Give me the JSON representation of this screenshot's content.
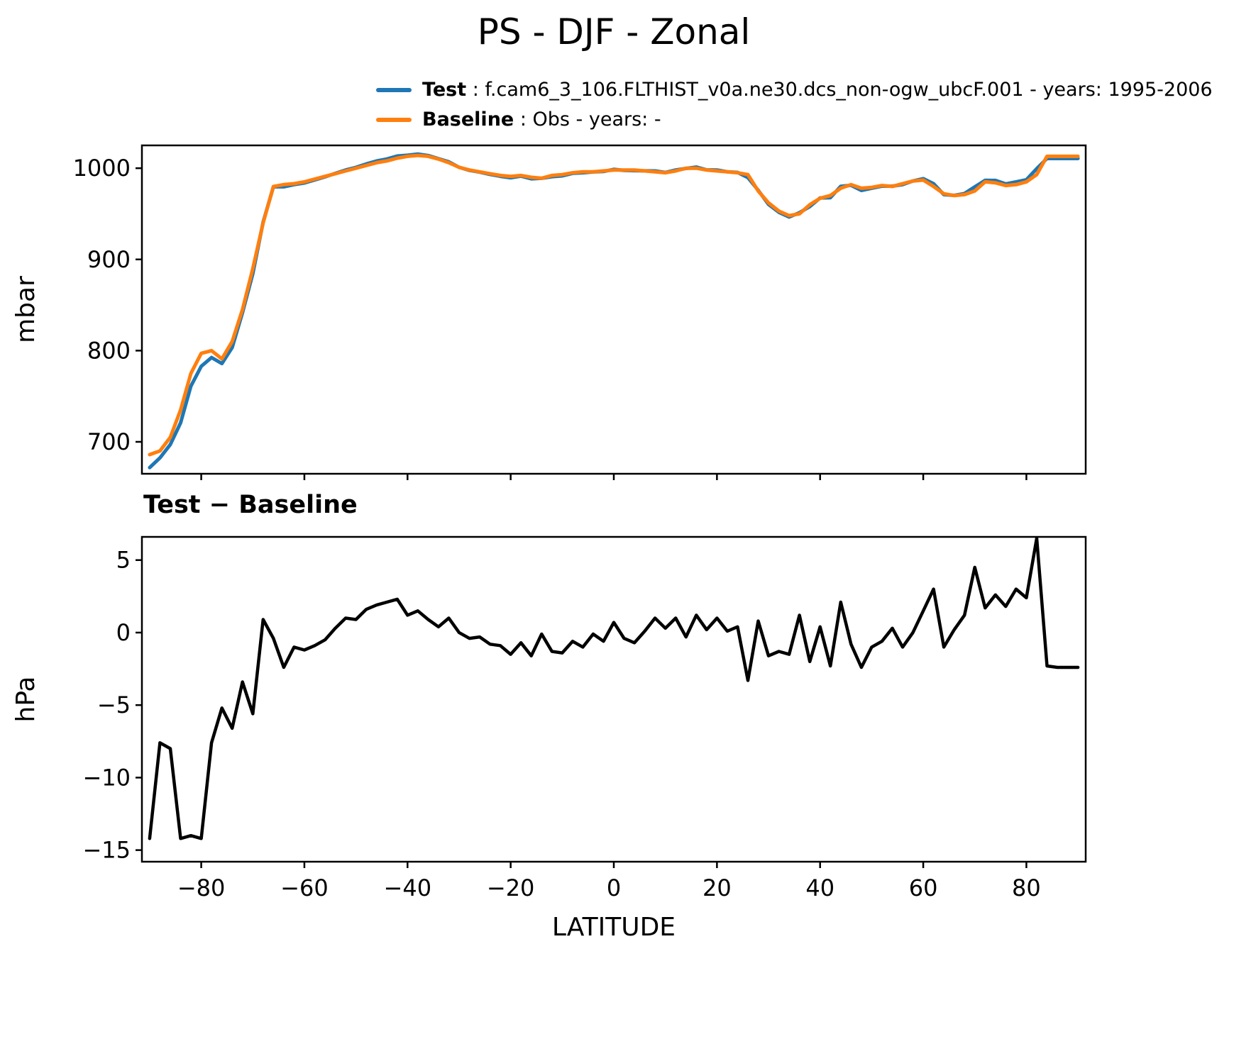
{
  "title": "PS - DJF - Zonal",
  "subplot2_title": "Test − Baseline",
  "legend": [
    {
      "label": "Test",
      "desc": " : f.cam6_3_106.FLTHIST_v0a.ne30.dcs_non-ogw_ubcF.001 - years: 1995-2006",
      "color": "#1f77b4"
    },
    {
      "label": "Baseline",
      "desc": " : Obs - years: -",
      "color": "#ff7f0e"
    }
  ],
  "colors": {
    "test": "#1f77b4",
    "baseline": "#ff7f0e",
    "diff": "#000000"
  },
  "chart_data": [
    {
      "type": "line",
      "title": "",
      "xlabel": "",
      "ylabel": "mbar",
      "xlim": [
        -91.5,
        91.5
      ],
      "ylim": [
        665,
        1025
      ],
      "xticks": [
        -80,
        -60,
        -40,
        -20,
        0,
        20,
        40,
        60,
        80
      ],
      "yticks": [
        700,
        800,
        900,
        1000
      ],
      "show_xtick_labels": false,
      "grid": false,
      "legend_position": "above-figure",
      "line_width": 5,
      "x": [
        -90,
        -88,
        -86,
        -84,
        -82,
        -80,
        -78,
        -76,
        -74,
        -72,
        -70,
        -68,
        -66,
        -64,
        -62,
        -60,
        -58,
        -56,
        -54,
        -52,
        -50,
        -48,
        -46,
        -44,
        -42,
        -40,
        -38,
        -36,
        -34,
        -32,
        -30,
        -28,
        -26,
        -24,
        -22,
        -20,
        -18,
        -16,
        -14,
        -12,
        -10,
        -8,
        -6,
        -4,
        -2,
        0,
        2,
        4,
        6,
        8,
        10,
        12,
        14,
        16,
        18,
        20,
        22,
        24,
        26,
        28,
        30,
        32,
        34,
        36,
        38,
        40,
        42,
        44,
        46,
        48,
        50,
        52,
        54,
        56,
        58,
        60,
        62,
        64,
        66,
        68,
        70,
        72,
        74,
        76,
        78,
        80,
        82,
        84,
        86,
        88,
        90
      ],
      "series": [
        {
          "name": "Test",
          "color": "#1f77b4",
          "values": [
            671.8,
            682.4,
            697.0,
            720.8,
            761.0,
            782.8,
            792.4,
            785.8,
            803.4,
            841.6,
            884.4,
            940.9,
            979.6,
            979.6,
            982.0,
            983.8,
            987.1,
            990.5,
            994.3,
            998.0,
            1000.9,
            1004.6,
            1007.9,
            1010.1,
            1013.3,
            1014.2,
            1015.5,
            1013.9,
            1010.4,
            1007.0,
            1001.0,
            997.6,
            995.7,
            993.2,
            991.1,
            989.5,
            991.3,
            988.4,
            988.9,
            990.7,
            991.6,
            994.4,
            995.0,
            995.9,
            996.4,
            998.7,
            997.6,
            997.3,
            997.1,
            997.0,
            995.3,
            998.0,
            999.7,
            1001.2,
            998.2,
            998.0,
            996.1,
            995.4,
            989.7,
            975.8,
            960.4,
            951.7,
            946.5,
            951.2,
            958.0,
            967.4,
            967.7,
            980.1,
            981.2,
            975.6,
            978.0,
            980.4,
            980.3,
            982.0,
            986.0,
            988.5,
            983.0,
            971.0,
            970.2,
            972.2,
            979.5,
            986.7,
            986.6,
            982.8,
            985.0,
            987.4,
            999.5,
            1010.7,
            1010.6,
            1010.6,
            1010.6
          ]
        },
        {
          "name": "Baseline",
          "color": "#ff7f0e",
          "values": [
            686,
            690,
            705,
            735,
            775,
            797,
            800,
            791,
            810,
            845,
            890,
            940,
            980,
            982,
            983,
            985,
            988,
            991,
            994,
            997,
            1000,
            1003,
            1006,
            1008,
            1011,
            1013,
            1014,
            1013,
            1010,
            1006,
            1001,
            998,
            996,
            994,
            992,
            991,
            992,
            990,
            989,
            992,
            993,
            995,
            996,
            996,
            997,
            998,
            998,
            998,
            997,
            996,
            995,
            997,
            1000,
            1000,
            998,
            997,
            996,
            995,
            993,
            975,
            962,
            953,
            948,
            950,
            960,
            967,
            970,
            978,
            982,
            978,
            979,
            981,
            980,
            983,
            986,
            987,
            980,
            972,
            970,
            971,
            975,
            985,
            984,
            981,
            982,
            985,
            993,
            1013,
            1013,
            1013,
            1013
          ]
        }
      ]
    },
    {
      "type": "line",
      "title": "Test − Baseline",
      "xlabel": "LATITUDE",
      "ylabel": "hPa",
      "xlim": [
        -91.5,
        91.5
      ],
      "ylim": [
        -15.8,
        6.6
      ],
      "xticks": [
        -80,
        -60,
        -40,
        -20,
        0,
        20,
        40,
        60,
        80
      ],
      "yticks": [
        -15,
        -10,
        -5,
        0,
        5
      ],
      "show_xtick_labels": true,
      "grid": false,
      "line_width": 4.5,
      "x": [
        -90,
        -88,
        -86,
        -84,
        -82,
        -80,
        -78,
        -76,
        -74,
        -72,
        -70,
        -68,
        -66,
        -64,
        -62,
        -60,
        -58,
        -56,
        -54,
        -52,
        -50,
        -48,
        -46,
        -44,
        -42,
        -40,
        -38,
        -36,
        -34,
        -32,
        -30,
        -28,
        -26,
        -24,
        -22,
        -20,
        -18,
        -16,
        -14,
        -12,
        -10,
        -8,
        -6,
        -4,
        -2,
        0,
        2,
        4,
        6,
        8,
        10,
        12,
        14,
        16,
        18,
        20,
        22,
        24,
        26,
        28,
        30,
        32,
        34,
        36,
        38,
        40,
        42,
        44,
        46,
        48,
        50,
        52,
        54,
        56,
        58,
        60,
        62,
        64,
        66,
        68,
        70,
        72,
        74,
        76,
        78,
        80,
        82,
        84,
        86,
        88,
        90
      ],
      "series": [
        {
          "name": "Test - Baseline",
          "color": "#000000",
          "values": [
            -14.2,
            -7.6,
            -8.0,
            -14.2,
            -14.0,
            -14.2,
            -7.6,
            -5.2,
            -6.6,
            -3.4,
            -5.6,
            0.9,
            -0.4,
            -2.4,
            -1.0,
            -1.2,
            -0.9,
            -0.5,
            0.3,
            1.0,
            0.9,
            1.6,
            1.9,
            2.1,
            2.3,
            1.2,
            1.5,
            0.9,
            0.4,
            1.0,
            0.0,
            -0.4,
            -0.3,
            -0.8,
            -0.9,
            -1.5,
            -0.7,
            -1.6,
            -0.1,
            -1.3,
            -1.4,
            -0.6,
            -1.0,
            -0.1,
            -0.6,
            0.7,
            -0.4,
            -0.7,
            0.1,
            1.0,
            0.3,
            1.0,
            -0.3,
            1.2,
            0.2,
            1.0,
            0.1,
            0.4,
            -3.3,
            0.8,
            -1.6,
            -1.3,
            -1.5,
            1.2,
            -2.0,
            0.4,
            -2.3,
            2.1,
            -0.8,
            -2.4,
            -1.0,
            -0.6,
            0.3,
            -1.0,
            0.0,
            1.5,
            3.0,
            -1.0,
            0.2,
            1.2,
            4.5,
            1.7,
            2.6,
            1.8,
            3.0,
            2.4,
            6.5,
            -2.3,
            -2.4,
            -2.4,
            -2.4
          ]
        }
      ]
    }
  ]
}
